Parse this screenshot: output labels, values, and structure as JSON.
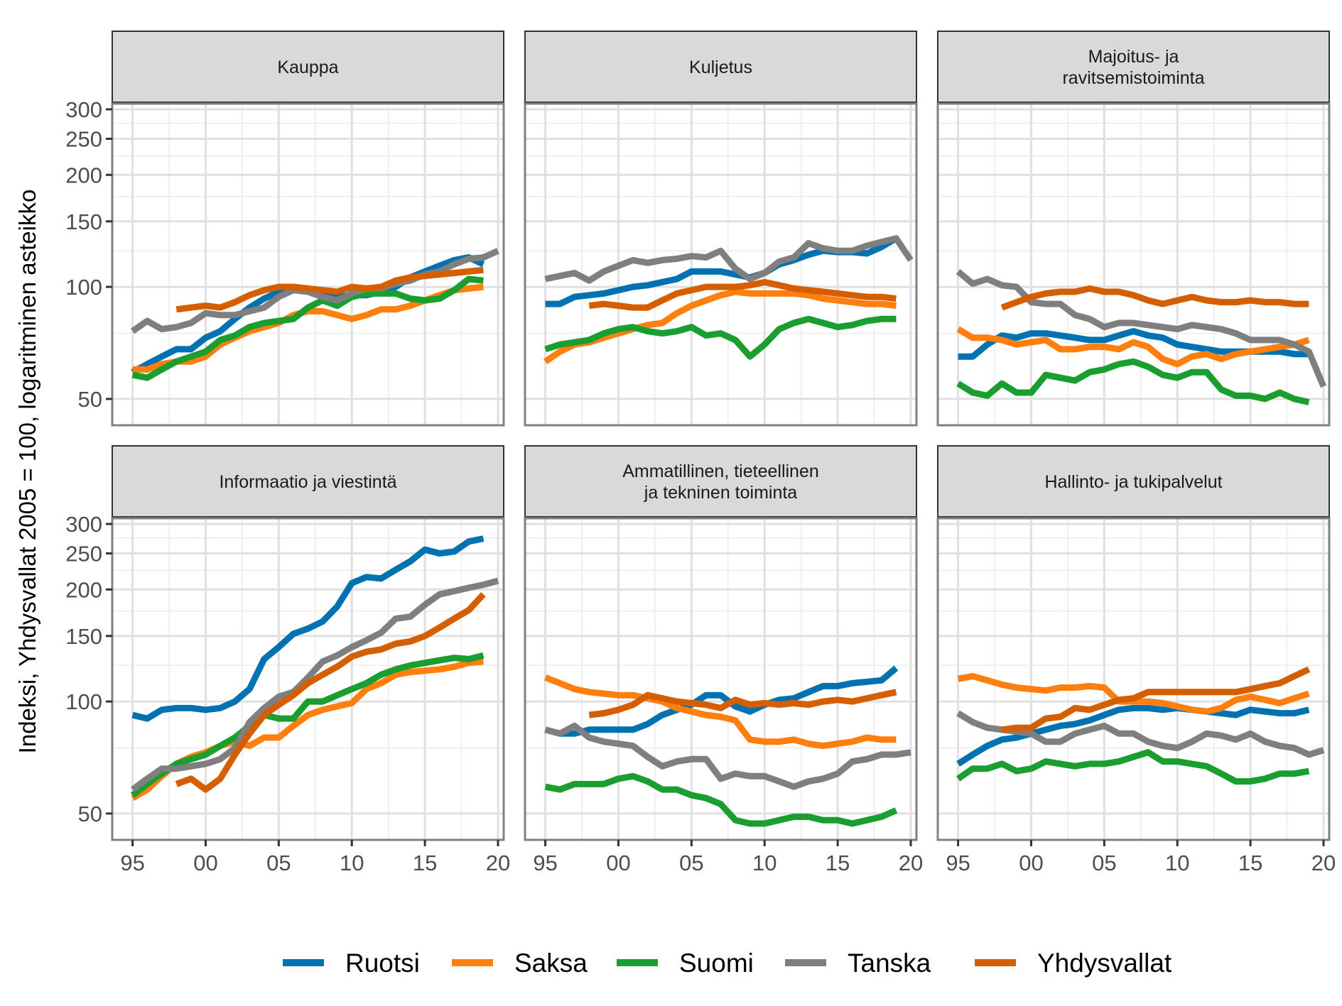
{
  "chart_data": {
    "type": "line",
    "layout": "facet-grid-2x3",
    "ylabel": "Indeksi, Yhdysvallat 2005 = 100, logaritminen asteikko",
    "xlabel": "",
    "y_scale": "log",
    "ylim": [
      44,
      300
    ],
    "xlim": [
      1994,
      2020
    ],
    "y_ticks": [
      50,
      100,
      150,
      200,
      250,
      300
    ],
    "y_tick_labels": [
      "50",
      "100",
      "150",
      "200",
      "250",
      "300"
    ],
    "x_ticks": [
      1995,
      2000,
      2005,
      2010,
      2015,
      2020
    ],
    "x_tick_labels": [
      "95",
      "00",
      "05",
      "10",
      "15",
      "20"
    ],
    "grid": true,
    "legend_position": "bottom",
    "series_names": [
      "Ruotsi",
      "Saksa",
      "Suomi",
      "Tanska",
      "Yhdysvallat"
    ],
    "colors": {
      "Ruotsi": "#0072B2",
      "Saksa": "#FF7F0E",
      "Suomi": "#1A9E2F",
      "Tanska": "#7F7F7F",
      "Yhdysvallat": "#D55E00"
    },
    "panels": [
      {
        "title": [
          "Kauppa"
        ],
        "series": [
          {
            "name": "Ruotsi",
            "x_start": 1995,
            "values": [
              59,
              62,
              65,
              68,
              68,
              73,
              76,
              82,
              88,
              93,
              97,
              98,
              98,
              96,
              94,
              95,
              95,
              97,
              100,
              106,
              110,
              114,
              118,
              120,
              115
            ]
          },
          {
            "name": "Saksa",
            "x_start": 1995,
            "values": [
              60,
              60,
              62,
              63,
              63,
              65,
              70,
              73,
              76,
              78,
              80,
              84,
              86,
              86,
              84,
              82,
              84,
              87,
              87,
              89,
              92,
              95,
              98,
              99,
              100
            ]
          },
          {
            "name": "Suomi",
            "x_start": 1995,
            "values": [
              58,
              57,
              60,
              63,
              65,
              67,
              72,
              74,
              78,
              80,
              81,
              82,
              88,
              92,
              89,
              94,
              96,
              96,
              96,
              93,
              92,
              93,
              98,
              105,
              104
            ]
          },
          {
            "name": "Tanska",
            "x_start": 1995,
            "values": [
              76,
              81,
              77,
              78,
              80,
              85,
              84,
              84,
              86,
              88,
              94,
              98,
              97,
              94,
              92,
              96,
              99,
              99,
              102,
              104,
              108,
              110,
              115,
              119,
              120,
              125
            ]
          },
          {
            "name": "Yhdysvallat",
            "x_start": 1998,
            "values": [
              87,
              88,
              89,
              88,
              91,
              95,
              98,
              100,
              100,
              99,
              98,
              97,
              100,
              99,
              100,
              104,
              106,
              107,
              108,
              109,
              110,
              111
            ]
          }
        ]
      },
      {
        "title": [
          "Kuljetus"
        ],
        "series": [
          {
            "name": "Ruotsi",
            "x_start": 1995,
            "values": [
              90,
              90,
              94,
              95,
              96,
              98,
              100,
              101,
              103,
              105,
              110,
              110,
              110,
              108,
              106,
              109,
              115,
              118,
              122,
              125,
              124,
              124,
              123,
              128,
              135
            ]
          },
          {
            "name": "Saksa",
            "x_start": 1995,
            "values": [
              63,
              67,
              70,
              71,
              73,
              75,
              77,
              79,
              80,
              85,
              89,
              92,
              95,
              97,
              96,
              96,
              96,
              96,
              95,
              93,
              92,
              91,
              90,
              90,
              89
            ]
          },
          {
            "name": "Suomi",
            "x_start": 1995,
            "values": [
              68,
              70,
              71,
              72,
              75,
              77,
              78,
              76,
              75,
              76,
              78,
              74,
              75,
              72,
              65,
              70,
              77,
              80,
              82,
              80,
              78,
              79,
              81,
              82,
              82
            ]
          },
          {
            "name": "Tanska",
            "x_start": 1995,
            "values": [
              105,
              107,
              109,
              104,
              110,
              114,
              118,
              116,
              118,
              119,
              121,
              120,
              125,
              112,
              105,
              109,
              117,
              120,
              131,
              127,
              125,
              125,
              129,
              132,
              135,
              118
            ]
          },
          {
            "name": "Yhdysvallat",
            "x_start": 1998,
            "values": [
              89,
              90,
              89,
              88,
              88,
              92,
              96,
              98,
              100,
              100,
              100,
              101,
              103,
              101,
              99,
              98,
              97,
              96,
              95,
              94,
              94,
              93
            ]
          }
        ]
      },
      {
        "title": [
          "Majoitus- ja",
          "ravitsemistoiminta"
        ],
        "series": [
          {
            "name": "Ruotsi",
            "x_start": 1995,
            "values": [
              65,
              65,
              70,
              74,
              73,
              75,
              75,
              74,
              73,
              72,
              72,
              74,
              76,
              74,
              73,
              70,
              69,
              68,
              67,
              67,
              67,
              67,
              67,
              66,
              66
            ]
          },
          {
            "name": "Saksa",
            "x_start": 1995,
            "values": [
              77,
              73,
              73,
              72,
              70,
              71,
              72,
              68,
              68,
              69,
              69,
              68,
              71,
              69,
              64,
              62,
              65,
              66,
              64,
              66,
              67,
              68,
              69,
              70,
              72
            ]
          },
          {
            "name": "Suomi",
            "x_start": 1995,
            "values": [
              55,
              52,
              51,
              55,
              52,
              52,
              58,
              57,
              56,
              59,
              60,
              62,
              63,
              61,
              58,
              57,
              59,
              59,
              53,
              51,
              51,
              50,
              52,
              50,
              49
            ]
          },
          {
            "name": "Tanska",
            "x_start": 1995,
            "values": [
              110,
              102,
              105,
              101,
              100,
              91,
              90,
              90,
              84,
              82,
              78,
              80,
              80,
              79,
              78,
              77,
              79,
              78,
              77,
              75,
              72,
              72,
              72,
              70,
              67,
              54
            ]
          },
          {
            "name": "Yhdysvallat",
            "x_start": 1998,
            "values": [
              88,
              91,
              94,
              96,
              97,
              97,
              99,
              97,
              97,
              95,
              92,
              90,
              92,
              94,
              92,
              91,
              91,
              92,
              91,
              91,
              90,
              90
            ]
          }
        ]
      },
      {
        "title": [
          "Informaatio ja viestintä"
        ],
        "series": [
          {
            "name": "Ruotsi",
            "x_start": 1995,
            "values": [
              92,
              90,
              95,
              96,
              96,
              95,
              96,
              100,
              108,
              130,
              140,
              152,
              157,
              164,
              180,
              208,
              216,
              214,
              226,
              238,
              256,
              250,
              253,
              269,
              274
            ]
          },
          {
            "name": "Saksa",
            "x_start": 1995,
            "values": [
              55,
              58,
              63,
              68,
              71,
              73,
              76,
              78,
              76,
              80,
              80,
              86,
              92,
              95,
              97,
              99,
              108,
              112,
              118,
              120,
              121,
              122,
              124,
              127,
              128
            ]
          },
          {
            "name": "Suomi",
            "x_start": 1995,
            "values": [
              56,
              60,
              64,
              68,
              70,
              72,
              76,
              80,
              86,
              92,
              90,
              90,
              100,
              100,
              104,
              108,
              112,
              118,
              122,
              125,
              127,
              129,
              131,
              130,
              133
            ]
          },
          {
            "name": "Tanska",
            "x_start": 1995,
            "values": [
              58,
              62,
              66,
              66,
              67,
              68,
              70,
              75,
              88,
              96,
              103,
              106,
              116,
              128,
              133,
              140,
              146,
              153,
              167,
              169,
              182,
              194,
              198,
              202,
              206,
              211
            ]
          },
          {
            "name": "Yhdysvallat",
            "x_start": 1998,
            "values": [
              60,
              62,
              58,
              62,
              72,
              82,
              92,
              98,
              104,
              112,
              118,
              124,
              132,
              136,
              138,
              143,
              145,
              150,
              158,
              167,
              176,
              194
            ]
          }
        ]
      },
      {
        "title": [
          "Ammatillinen, tieteellinen",
          "ja tekninen toiminta"
        ],
        "series": [
          {
            "name": "Ruotsi",
            "x_start": 1995,
            "values": [
              84,
              82,
              82,
              84,
              84,
              84,
              84,
              87,
              92,
              95,
              98,
              104,
              104,
              97,
              94,
              98,
              101,
              102,
              106,
              110,
              110,
              112,
              113,
              114,
              123
            ]
          },
          {
            "name": "Saksa",
            "x_start": 1995,
            "values": [
              116,
              112,
              108,
              106,
              105,
              104,
              104,
              102,
              100,
              96,
              94,
              92,
              91,
              89,
              79,
              78,
              78,
              79,
              77,
              76,
              77,
              78,
              80,
              79,
              79
            ]
          },
          {
            "name": "Suomi",
            "x_start": 1995,
            "values": [
              59,
              58,
              60,
              60,
              60,
              62,
              63,
              61,
              58,
              58,
              56,
              55,
              53,
              48,
              47,
              47,
              48,
              49,
              49,
              48,
              48,
              47,
              48,
              49,
              51
            ]
          },
          {
            "name": "Tanska",
            "x_start": 1995,
            "values": [
              84,
              82,
              86,
              80,
              78,
              77,
              76,
              71,
              67,
              69,
              70,
              70,
              62,
              64,
              63,
              63,
              61,
              59,
              61,
              62,
              64,
              69,
              70,
              72,
              72,
              73
            ]
          },
          {
            "name": "Yhdysvallat",
            "x_start": 1998,
            "values": [
              92,
              93,
              95,
              98,
              104,
              102,
              100,
              99,
              98,
              96,
              101,
              98,
              99,
              98,
              99,
              98,
              100,
              101,
              100,
              102,
              104,
              106
            ]
          }
        ]
      },
      {
        "title": [
          "Hallinto- ja tukipalvelut"
        ],
        "series": [
          {
            "name": "Ruotsi",
            "x_start": 1995,
            "values": [
              68,
              72,
              76,
              79,
              80,
              82,
              84,
              86,
              87,
              89,
              92,
              95,
              96,
              96,
              95,
              96,
              95,
              94,
              93,
              92,
              95,
              94,
              93,
              93,
              95
            ]
          },
          {
            "name": "Saksa",
            "x_start": 1995,
            "values": [
              115,
              117,
              114,
              111,
              109,
              108,
              107,
              109,
              109,
              110,
              109,
              100,
              100,
              100,
              99,
              97,
              95,
              94,
              96,
              101,
              103,
              101,
              99,
              102,
              105
            ]
          },
          {
            "name": "Suomi",
            "x_start": 1995,
            "values": [
              62,
              66,
              66,
              68,
              65,
              66,
              69,
              68,
              67,
              68,
              68,
              69,
              71,
              73,
              69,
              69,
              68,
              67,
              64,
              61,
              61,
              62,
              64,
              64,
              65
            ]
          },
          {
            "name": "Tanska",
            "x_start": 1995,
            "values": [
              93,
              88,
              85,
              84,
              83,
              82,
              78,
              78,
              82,
              84,
              86,
              82,
              82,
              78,
              76,
              75,
              78,
              82,
              81,
              79,
              82,
              78,
              76,
              75,
              72,
              74
            ]
          },
          {
            "name": "Yhdysvallat",
            "x_start": 1998,
            "values": [
              84,
              85,
              85,
              90,
              91,
              96,
              95,
              98,
              101,
              102,
              106,
              106,
              106,
              106,
              106,
              106,
              106,
              108,
              110,
              112,
              117,
              122
            ]
          }
        ]
      }
    ]
  }
}
